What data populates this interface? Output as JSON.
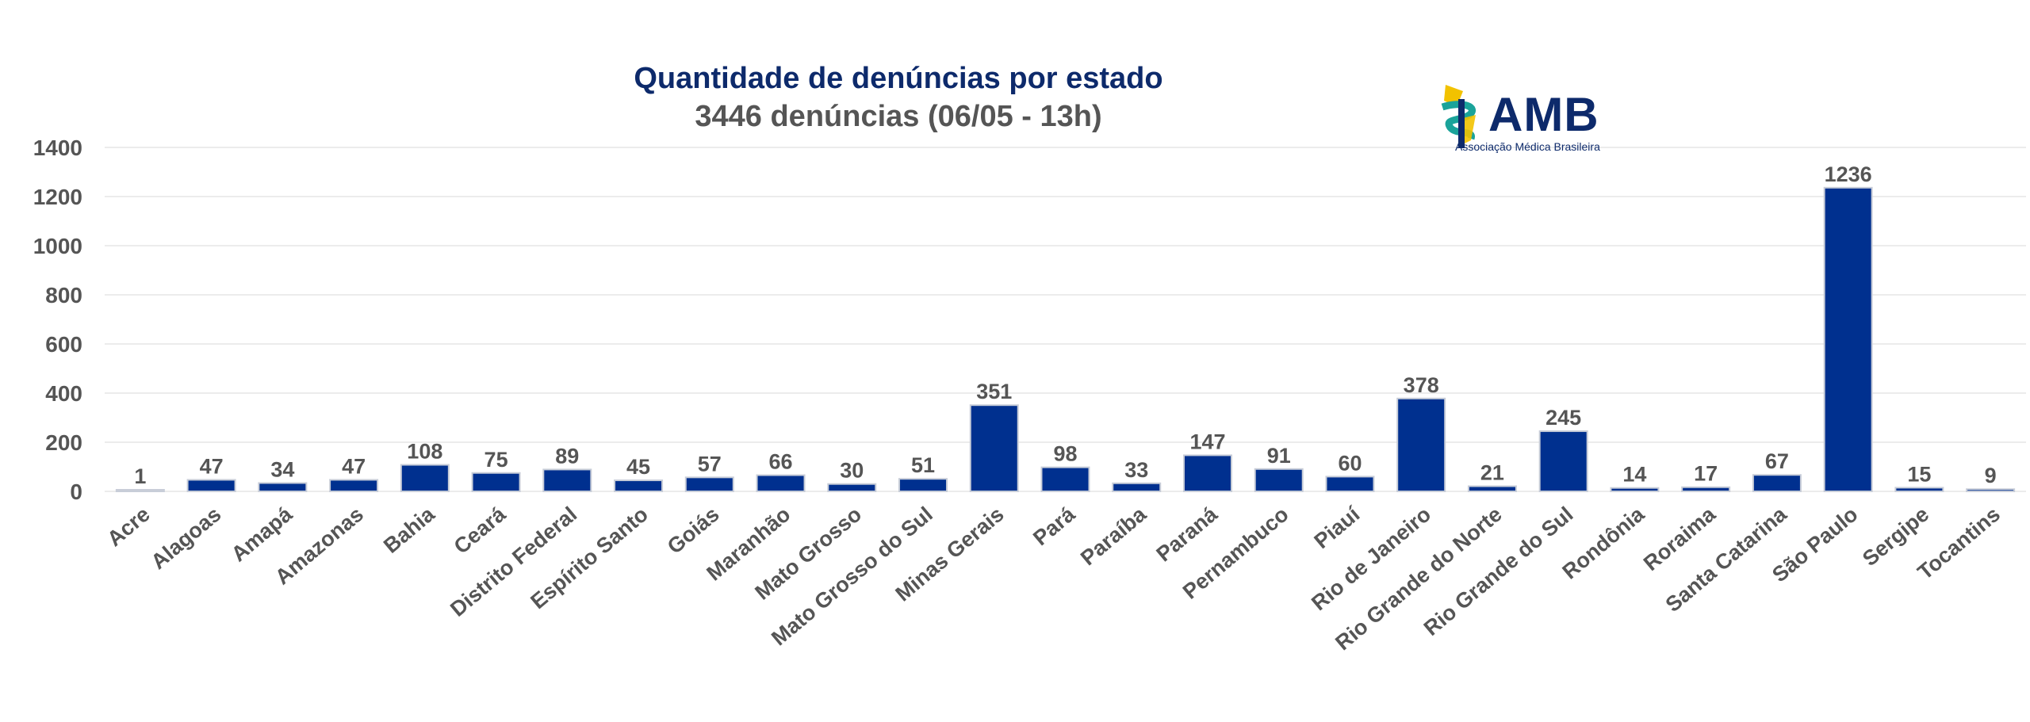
{
  "title": "Quantidade de denúncias por estado",
  "subtitle": "3446 denúncias (06/05 - 13h)",
  "logo": {
    "text": "AMB",
    "subtext": "Associação Médica Brasileira",
    "colors": {
      "navy": "#0d2a6b",
      "teal": "#1aa39a",
      "yellow": "#f2c200"
    }
  },
  "colors": {
    "bar": "#00308f",
    "bar_border": "#c8cdd8",
    "label": "#555555",
    "tick": "#555555",
    "grid": "#e6e6e6"
  },
  "chart_data": {
    "type": "bar",
    "title": "Quantidade de denúncias por estado",
    "subtitle": "3446 denúncias (06/05 - 13h)",
    "xlabel": "",
    "ylabel": "",
    "ylim": [
      0,
      1400
    ],
    "yticks": [
      0,
      200,
      400,
      600,
      800,
      1000,
      1200,
      1400
    ],
    "grid": true,
    "legend": "none",
    "categories": [
      "Acre",
      "Alagoas",
      "Amapá",
      "Amazonas",
      "Bahia",
      "Ceará",
      "Distrito Federal",
      "Espírito Santo",
      "Goiás",
      "Maranhão",
      "Mato Grosso",
      "Mato Grosso do Sul",
      "Minas Gerais",
      "Pará",
      "Paraíba",
      "Paraná",
      "Pernambuco",
      "Piauí",
      "Rio de Janeiro",
      "Rio Grande do Norte",
      "Rio Grande do Sul",
      "Rondônia",
      "Roraima",
      "Santa Catarina",
      "São Paulo",
      "Sergipe",
      "Tocantins"
    ],
    "values": [
      1,
      47,
      34,
      47,
      108,
      75,
      89,
      45,
      57,
      66,
      30,
      51,
      351,
      98,
      33,
      147,
      91,
      60,
      378,
      21,
      245,
      14,
      17,
      67,
      1236,
      15,
      9
    ]
  }
}
